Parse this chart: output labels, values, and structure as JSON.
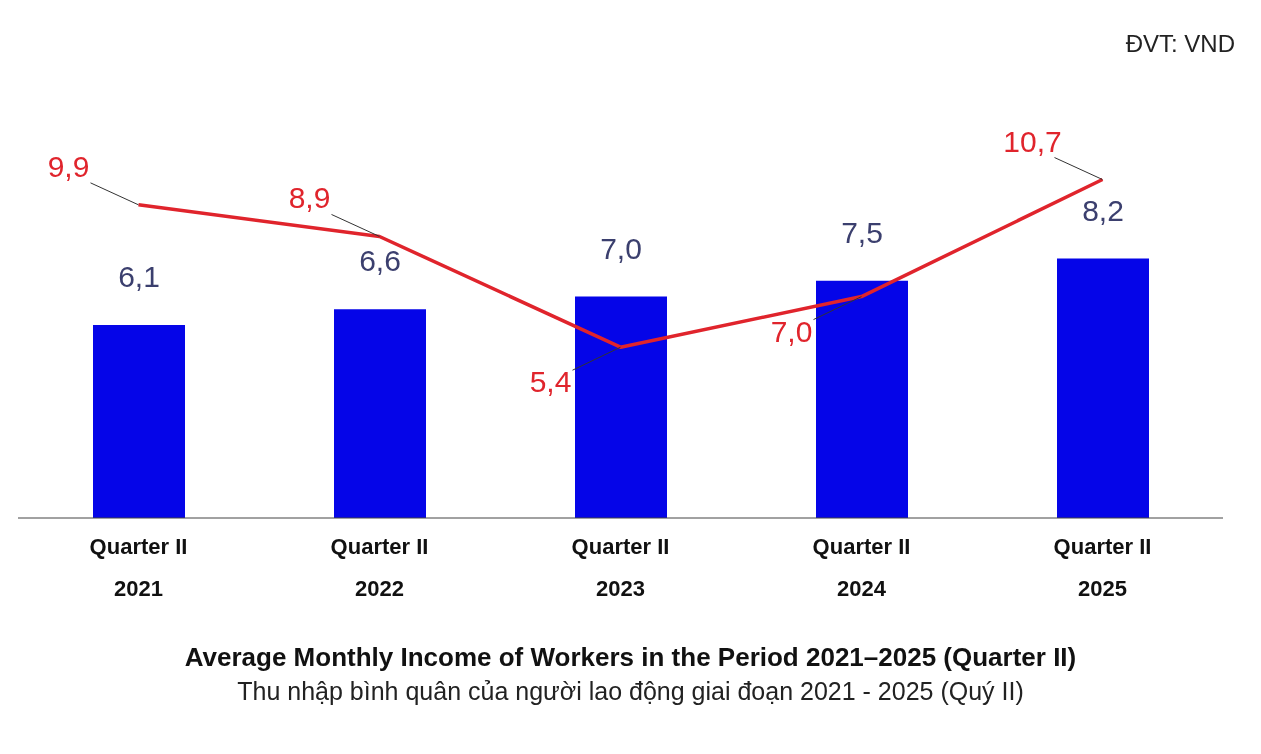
{
  "chart_data": {
    "type": "bar",
    "title": "Average Monthly Income of Workers in the Period 2021–2025 (Quarter II)",
    "subtitle": "Thu nhập bình quân của người lao động giai đoạn 2021 - 2025 (Quý II)",
    "annotations": [
      "ĐVT: VND"
    ],
    "categories": [
      "Quarter II 2021",
      "Quarter II 2022",
      "Quarter II 2023",
      "Quarter II 2024",
      "Quarter II 2025"
    ],
    "series": [
      {
        "color": "#0505e8",
        "values": [
          6.1,
          6.6,
          7.0,
          7.5,
          8.2
        ],
        "value_labels": [
          "6,1",
          "6,6",
          "7,0",
          "7,5",
          "8,2"
        ]
      },
      {
        "type": "line",
        "color": "#e0242c",
        "values": [
          9.9,
          8.9,
          5.4,
          7.0,
          10.7
        ],
        "value_labels": [
          "9,9",
          "8,9",
          "5,4",
          "7,0",
          "10,7"
        ]
      }
    ],
    "grid": false,
    "legend": false
  }
}
